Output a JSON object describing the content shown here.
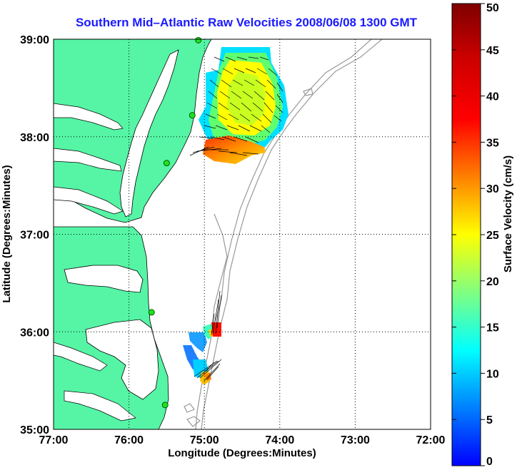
{
  "title": "Southern Mid–Atlantic Raw Velocities 2008/06/08 1300 GMT",
  "map": {
    "xlabel": "Longitude (Degrees:Minutes)",
    "ylabel": "Latitude (Degrees:Minutes)",
    "lon_ticks": [
      "77:00",
      "76:00",
      "75:00",
      "74:00",
      "73:00",
      "72:00"
    ],
    "lat_ticks": [
      "39:00",
      "38:00",
      "37:00",
      "36:00",
      "35:00"
    ],
    "lon_range": [
      -77,
      -72
    ],
    "lat_range": [
      35,
      39
    ],
    "grid": "dotted",
    "land_color": "#55f5a5",
    "bathymetry_color": "#999999"
  },
  "colorbar": {
    "label": "Surface Velocity (cm/s)",
    "range": [
      0,
      50
    ],
    "ticks": [
      "0",
      "5",
      "10",
      "15",
      "20",
      "25",
      "30",
      "35",
      "40",
      "45",
      "50"
    ]
  },
  "stations": [
    {
      "lon": -75.08,
      "lat": 38.99
    },
    {
      "lon": -75.16,
      "lat": 38.22
    },
    {
      "lon": -75.5,
      "lat": 37.73
    },
    {
      "lon": -75.7,
      "lat": 36.2
    },
    {
      "lon": -75.52,
      "lat": 35.25
    }
  ]
}
